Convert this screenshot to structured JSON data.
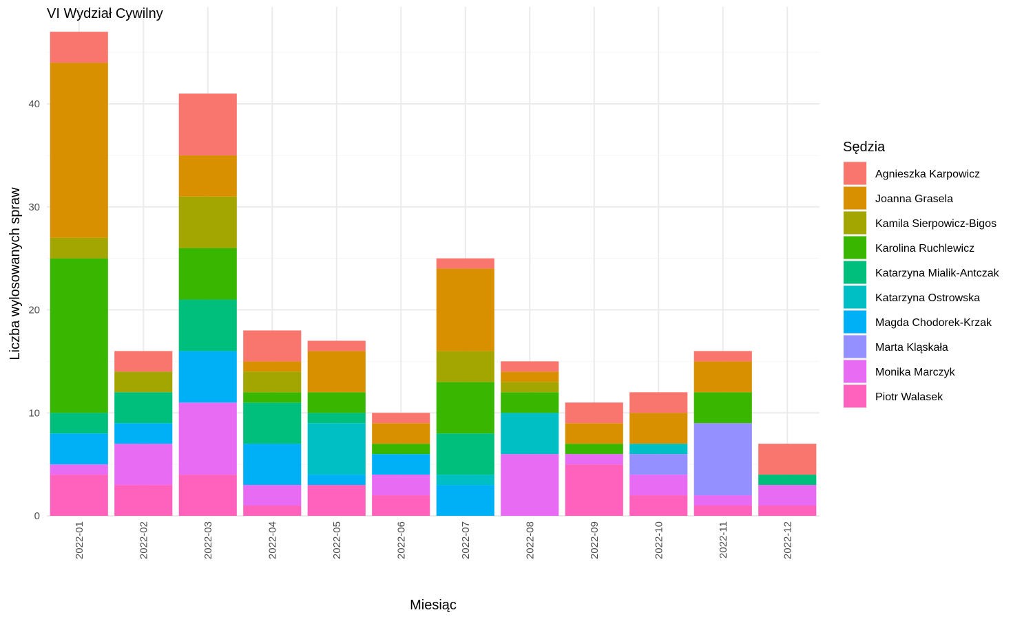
{
  "chart_data": {
    "type": "bar",
    "stacked": true,
    "title": "VI Wydział Cywilny",
    "xlabel": "Miesiąc",
    "ylabel": "Liczba wylosowanych spraw",
    "ylim": [
      0,
      47
    ],
    "yticks": [
      0,
      10,
      20,
      30,
      40
    ],
    "grid": true,
    "legend_title": "Sędzia",
    "legend_position": "right",
    "categories": [
      "2022-01",
      "2022-02",
      "2022-03",
      "2022-04",
      "2022-05",
      "2022-06",
      "2022-07",
      "2022-08",
      "2022-09",
      "2022-10",
      "2022-11",
      "2022-12"
    ],
    "series": [
      {
        "name": "Agnieszka Karpowicz",
        "color": "#F8766D",
        "values": [
          3,
          2,
          6,
          3,
          1,
          1,
          1,
          1,
          2,
          2,
          1,
          3
        ]
      },
      {
        "name": "Joanna Grasela",
        "color": "#D89000",
        "values": [
          17,
          0,
          4,
          1,
          4,
          2,
          8,
          1,
          2,
          3,
          3,
          0
        ]
      },
      {
        "name": "Kamila Sierpowicz-Bigos",
        "color": "#A3A500",
        "values": [
          2,
          2,
          5,
          2,
          0,
          0,
          3,
          1,
          0,
          0,
          0,
          0
        ]
      },
      {
        "name": "Karolina Ruchlewicz",
        "color": "#39B600",
        "values": [
          15,
          0,
          5,
          1,
          2,
          1,
          5,
          2,
          1,
          0,
          3,
          0
        ]
      },
      {
        "name": "Katarzyna Mialik-Antczak",
        "color": "#00BF7D",
        "values": [
          2,
          3,
          5,
          4,
          1,
          0,
          4,
          0,
          0,
          0,
          0,
          1
        ]
      },
      {
        "name": "Katarzyna Ostrowska",
        "color": "#00BFC4",
        "values": [
          0,
          0,
          0,
          0,
          5,
          0,
          1,
          4,
          0,
          1,
          0,
          0
        ]
      },
      {
        "name": "Magda Chodorek-Krzak",
        "color": "#00B0F6",
        "values": [
          3,
          2,
          5,
          4,
          1,
          2,
          3,
          0,
          0,
          0,
          0,
          0
        ]
      },
      {
        "name": "Marta Kląskała",
        "color": "#9590FF",
        "values": [
          0,
          0,
          0,
          0,
          0,
          0,
          0,
          0,
          0,
          2,
          7,
          0
        ]
      },
      {
        "name": "Monika Marczyk",
        "color": "#E76BF3",
        "values": [
          1,
          4,
          7,
          2,
          0,
          2,
          0,
          6,
          1,
          2,
          1,
          2
        ]
      },
      {
        "name": "Piotr Walasek",
        "color": "#FF62BC",
        "values": [
          4,
          3,
          4,
          1,
          3,
          2,
          0,
          0,
          5,
          2,
          1,
          1
        ]
      }
    ]
  }
}
